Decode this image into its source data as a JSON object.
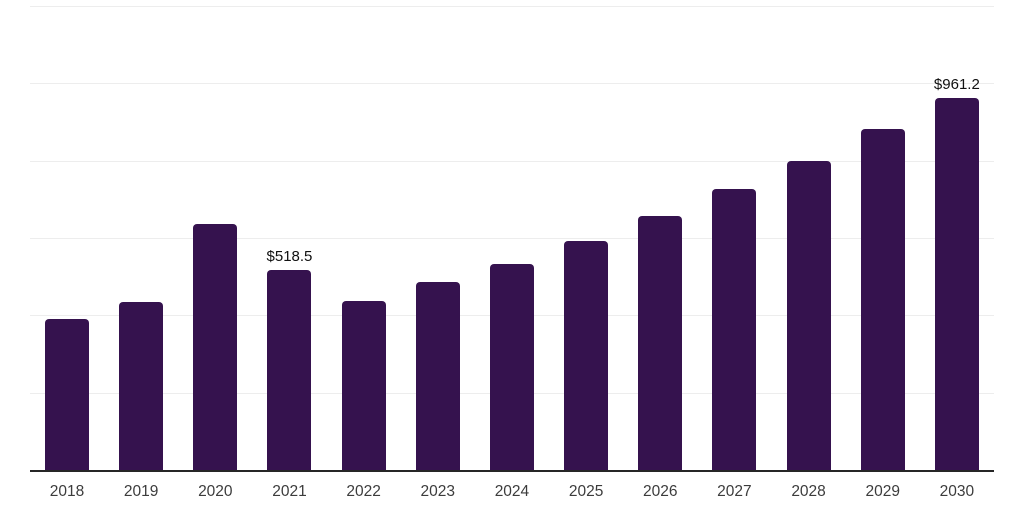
{
  "chart_data": {
    "type": "bar",
    "title": "",
    "xlabel": "",
    "ylabel": "",
    "categories": [
      "2018",
      "2019",
      "2020",
      "2021",
      "2022",
      "2023",
      "2024",
      "2025",
      "2026",
      "2027",
      "2028",
      "2029",
      "2030"
    ],
    "values": [
      391,
      433.5,
      636,
      518.5,
      436,
      485.5,
      532,
      592,
      658,
      725.5,
      799,
      881,
      961.2
    ],
    "data_labels": {
      "2021": "$518.5",
      "2030": "$961.2"
    },
    "ylim": [
      0,
      1200
    ],
    "gridline_step": 200,
    "grid": "horizontal-only",
    "legend": "none",
    "y_tick_labels_visible": false,
    "colors": {
      "bar": "#35124e",
      "axis_line": "#262626",
      "gridline": "#ededed",
      "value_label": "#111111",
      "tick_label": "#3c3c3c",
      "background": "#ffffff"
    }
  }
}
